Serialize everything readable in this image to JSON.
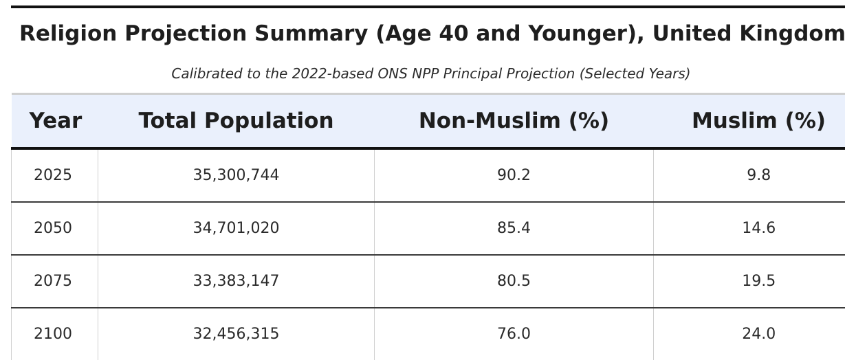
{
  "title": "Religion Projection Summary (Age 40 and Younger), United Kingdom",
  "subtitle": "Calibrated to the 2022-based ONS NPP Principal Projection (Selected Years)",
  "table": {
    "headers": [
      "Year",
      "Total Population",
      "Non-Muslim (%)",
      "Muslim (%)"
    ],
    "rows": [
      [
        "2025",
        "35,300,744",
        "90.2",
        "9.8"
      ],
      [
        "2050",
        "34,701,020",
        "85.4",
        "14.6"
      ],
      [
        "2075",
        "33,383,147",
        "80.5",
        "19.5"
      ],
      [
        "2100",
        "32,456,315",
        "76.0",
        "24.0"
      ]
    ]
  },
  "colors": {
    "header_background": "#eaf0fc",
    "rule": "#111111"
  }
}
